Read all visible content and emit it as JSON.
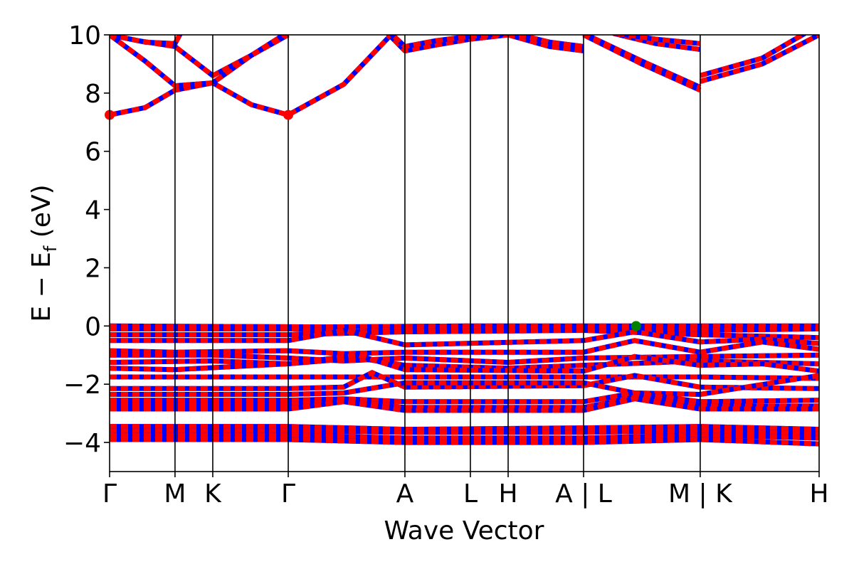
{
  "chart_data": {
    "type": "line",
    "xlabel": "Wave Vector",
    "ylabel": {
      "main": "E − E",
      "sub": "f",
      "unit": " (eV)"
    },
    "ylim": [
      -5,
      10
    ],
    "xlim": [
      0,
      1
    ],
    "grid": false,
    "yticks": [
      -4,
      -2,
      0,
      2,
      4,
      6,
      8,
      10
    ],
    "ytick_labels": [
      "−4",
      "−2",
      "0",
      "2",
      "4",
      "6",
      "8",
      "10"
    ],
    "kpoints": [
      {
        "label": "Γ",
        "x": 0.0
      },
      {
        "label": "M",
        "x": 0.0922
      },
      {
        "label": "K",
        "x": 0.1454
      },
      {
        "label": "Γ",
        "x": 0.2518
      },
      {
        "label": "A",
        "x": 0.4162
      },
      {
        "label": "L",
        "x": 0.5085
      },
      {
        "label": "H",
        "x": 0.5617
      },
      {
        "label": "A | L",
        "x": 0.668
      },
      {
        "label": "M | K",
        "x": 0.8324
      },
      {
        "label": "H",
        "x": 1.0
      }
    ],
    "colors": {
      "spin_up": "#ff0000",
      "spin_down": "#0000ff",
      "vbm": "#008000",
      "cbm": "#ff0000"
    },
    "cbm": {
      "x": 0.0,
      "y": 7.25,
      "x2": 0.2518
    },
    "vbm": {
      "x": 0.742,
      "y": 0.0
    },
    "conduction_bands": [
      {
        "name": "c1",
        "points": [
          [
            0.0,
            7.25
          ],
          [
            0.05,
            7.5
          ],
          [
            0.0922,
            8.1
          ],
          [
            0.1454,
            8.35
          ],
          [
            0.2,
            7.6
          ],
          [
            0.2518,
            7.25
          ],
          [
            0.33,
            8.3
          ],
          [
            0.4162,
            10.5
          ]
        ]
      },
      {
        "name": "c2",
        "points": [
          [
            0.0,
            10.0
          ],
          [
            0.05,
            9.1
          ],
          [
            0.0922,
            8.25
          ],
          [
            0.1454,
            8.35
          ],
          [
            0.2,
            9.3
          ],
          [
            0.2518,
            10.0
          ]
        ]
      },
      {
        "name": "c3",
        "points": [
          [
            0.0,
            10.0
          ],
          [
            0.04,
            9.8
          ],
          [
            0.0922,
            9.6
          ],
          [
            0.1454,
            8.6
          ],
          [
            0.2,
            9.3
          ],
          [
            0.2518,
            10.1
          ]
        ]
      },
      {
        "name": "c4",
        "points": [
          [
            0.0,
            10.0
          ],
          [
            0.05,
            9.75
          ],
          [
            0.0922,
            9.7
          ],
          [
            0.1,
            10.05
          ]
        ]
      },
      {
        "name": "c5",
        "points": [
          [
            0.39,
            10.1
          ],
          [
            0.4162,
            9.45
          ],
          [
            0.46,
            9.65
          ],
          [
            0.5085,
            9.85
          ],
          [
            0.5617,
            10.0
          ]
        ]
      },
      {
        "name": "c6",
        "points": [
          [
            0.39,
            10.2
          ],
          [
            0.4162,
            9.6
          ],
          [
            0.46,
            9.8
          ],
          [
            0.5085,
            9.95
          ],
          [
            0.5617,
            10.05
          ]
        ]
      },
      {
        "name": "c7",
        "points": [
          [
            0.5617,
            10.0
          ],
          [
            0.62,
            9.6
          ],
          [
            0.668,
            9.45
          ]
        ]
      },
      {
        "name": "c8",
        "points": [
          [
            0.5617,
            10.1
          ],
          [
            0.62,
            9.75
          ],
          [
            0.668,
            9.6
          ]
        ]
      },
      {
        "name": "c9",
        "points": [
          [
            0.668,
            10.0
          ],
          [
            0.75,
            9.0
          ],
          [
            0.8324,
            8.1
          ]
        ]
      },
      {
        "name": "c10",
        "points": [
          [
            0.668,
            10.05
          ],
          [
            0.75,
            9.1
          ],
          [
            0.8324,
            8.2
          ]
        ]
      },
      {
        "name": "c11",
        "points": [
          [
            0.71,
            10.05
          ],
          [
            0.77,
            9.7
          ],
          [
            0.8324,
            9.5
          ]
        ]
      },
      {
        "name": "c12",
        "points": [
          [
            0.7,
            10.1
          ],
          [
            0.77,
            9.85
          ],
          [
            0.8324,
            9.7
          ]
        ]
      },
      {
        "name": "c13",
        "points": [
          [
            0.8324,
            8.4
          ],
          [
            0.92,
            9.0
          ],
          [
            1.0,
            10.0
          ]
        ]
      },
      {
        "name": "c14",
        "points": [
          [
            0.8324,
            8.6
          ],
          [
            0.92,
            9.2
          ],
          [
            0.98,
            10.05
          ]
        ]
      }
    ],
    "valence_bands": [
      {
        "name": "v1",
        "points": [
          [
            0.0,
            0.0
          ],
          [
            0.3,
            -0.03
          ],
          [
            0.5,
            0.0
          ],
          [
            0.742,
            0.0
          ],
          [
            1.0,
            0.0
          ]
        ]
      },
      {
        "name": "v2",
        "points": [
          [
            0.0,
            -0.1
          ],
          [
            0.2518,
            -0.1
          ],
          [
            0.35,
            -0.2
          ],
          [
            0.4162,
            -0.1
          ],
          [
            0.742,
            -0.05
          ],
          [
            0.8324,
            -0.15
          ],
          [
            1.0,
            -0.1
          ]
        ]
      },
      {
        "name": "v3",
        "points": [
          [
            0.0,
            -0.3
          ],
          [
            0.2518,
            -0.3
          ],
          [
            0.4162,
            -0.2
          ],
          [
            0.668,
            -0.15
          ],
          [
            0.8324,
            -0.3
          ],
          [
            1.0,
            -0.4
          ]
        ]
      },
      {
        "name": "v4",
        "points": [
          [
            0.0,
            -0.5
          ],
          [
            0.2518,
            -0.5
          ],
          [
            0.33,
            -0.15
          ],
          [
            0.4162,
            -0.65
          ],
          [
            0.668,
            -0.5
          ],
          [
            0.74,
            -0.2
          ],
          [
            0.8324,
            -0.55
          ],
          [
            0.92,
            -0.45
          ],
          [
            1.0,
            -0.6
          ]
        ]
      },
      {
        "name": "v5",
        "points": [
          [
            0.0,
            -0.85
          ],
          [
            0.0922,
            -0.9
          ],
          [
            0.2518,
            -0.85
          ],
          [
            0.33,
            -0.95
          ],
          [
            0.4162,
            -0.9
          ],
          [
            0.668,
            -0.9
          ],
          [
            0.74,
            -0.5
          ],
          [
            0.8324,
            -0.9
          ],
          [
            0.92,
            -0.55
          ],
          [
            1.0,
            -0.8
          ]
        ]
      },
      {
        "name": "v6",
        "points": [
          [
            0.0,
            -1.0
          ],
          [
            0.1454,
            -1.0
          ],
          [
            0.2518,
            -1.1
          ],
          [
            0.33,
            -1.2
          ],
          [
            0.4162,
            -1.1
          ],
          [
            0.5617,
            -1.25
          ],
          [
            0.668,
            -1.1
          ],
          [
            0.8324,
            -1.05
          ],
          [
            1.0,
            -1.0
          ]
        ]
      },
      {
        "name": "v7",
        "points": [
          [
            0.0,
            -1.25
          ],
          [
            0.1454,
            -1.2
          ],
          [
            0.2518,
            -1.3
          ],
          [
            0.35,
            -1.1
          ],
          [
            0.4162,
            -1.35
          ],
          [
            0.5617,
            -1.45
          ],
          [
            0.668,
            -1.35
          ],
          [
            0.8324,
            -1.2
          ],
          [
            1.0,
            -1.3
          ]
        ]
      },
      {
        "name": "v8",
        "points": [
          [
            0.0,
            -1.45
          ],
          [
            0.0922,
            -1.5
          ],
          [
            0.2518,
            -1.3
          ],
          [
            0.35,
            -1.0
          ],
          [
            0.4162,
            -1.5
          ],
          [
            0.668,
            -1.55
          ],
          [
            0.74,
            -1.05
          ],
          [
            0.8324,
            -1.35
          ],
          [
            0.92,
            -1.3
          ],
          [
            1.0,
            -1.55
          ]
        ]
      },
      {
        "name": "v9",
        "points": [
          [
            0.0,
            -1.75
          ],
          [
            0.2518,
            -1.75
          ],
          [
            0.4162,
            -1.75
          ],
          [
            0.668,
            -1.75
          ],
          [
            0.8324,
            -1.75
          ],
          [
            1.0,
            -1.8
          ]
        ]
      },
      {
        "name": "v10",
        "points": [
          [
            0.0,
            -2.15
          ],
          [
            0.2518,
            -2.15
          ],
          [
            0.33,
            -2.1
          ],
          [
            0.37,
            -1.6
          ],
          [
            0.4162,
            -2.1
          ],
          [
            0.668,
            -2.05
          ],
          [
            0.74,
            -1.7
          ],
          [
            0.8324,
            -2.1
          ],
          [
            1.0,
            -2.15
          ]
        ]
      },
      {
        "name": "v11",
        "points": [
          [
            0.0,
            -2.35
          ],
          [
            0.2518,
            -2.35
          ],
          [
            0.33,
            -2.3
          ],
          [
            0.4162,
            -1.95
          ],
          [
            0.668,
            -1.95
          ],
          [
            0.74,
            -2.3
          ],
          [
            0.8324,
            -2.35
          ],
          [
            1.0,
            -1.7
          ]
        ]
      },
      {
        "name": "v12",
        "points": [
          [
            0.0,
            -2.55
          ],
          [
            0.2518,
            -2.55
          ],
          [
            0.33,
            -2.5
          ],
          [
            0.4162,
            -2.6
          ],
          [
            0.668,
            -2.6
          ],
          [
            0.74,
            -2.3
          ],
          [
            0.8324,
            -2.6
          ],
          [
            1.0,
            -2.55
          ]
        ]
      },
      {
        "name": "v13",
        "points": [
          [
            0.0,
            -2.7
          ],
          [
            0.2518,
            -2.7
          ],
          [
            0.33,
            -2.55
          ],
          [
            0.4162,
            -2.8
          ],
          [
            0.668,
            -2.8
          ],
          [
            0.74,
            -2.45
          ],
          [
            0.8324,
            -2.75
          ],
          [
            1.0,
            -2.75
          ]
        ]
      },
      {
        "name": "v14",
        "points": [
          [
            0.0,
            -2.85
          ],
          [
            0.2518,
            -2.85
          ],
          [
            0.33,
            -2.6
          ],
          [
            0.4162,
            -2.9
          ],
          [
            0.668,
            -2.9
          ],
          [
            0.74,
            -2.5
          ],
          [
            0.8324,
            -2.85
          ],
          [
            1.0,
            -2.85
          ]
        ]
      },
      {
        "name": "v15",
        "points": [
          [
            0.0,
            -3.45
          ],
          [
            0.2518,
            -3.45
          ],
          [
            0.4162,
            -3.55
          ],
          [
            0.668,
            -3.5
          ],
          [
            0.8324,
            -3.45
          ],
          [
            1.0,
            -3.55
          ]
        ]
      },
      {
        "name": "v16",
        "points": [
          [
            0.0,
            -3.6
          ],
          [
            0.2518,
            -3.6
          ],
          [
            0.4162,
            -3.65
          ],
          [
            0.668,
            -3.65
          ],
          [
            0.8324,
            -3.6
          ],
          [
            1.0,
            -3.7
          ]
        ]
      },
      {
        "name": "v17",
        "points": [
          [
            0.0,
            -3.75
          ],
          [
            0.2518,
            -3.75
          ],
          [
            0.4162,
            -3.85
          ],
          [
            0.668,
            -3.85
          ],
          [
            0.8324,
            -3.75
          ],
          [
            1.0,
            -3.85
          ]
        ]
      },
      {
        "name": "v18",
        "points": [
          [
            0.0,
            -3.9
          ],
          [
            0.2518,
            -3.9
          ],
          [
            0.4162,
            -4.0
          ],
          [
            0.668,
            -4.0
          ],
          [
            0.8324,
            -3.9
          ],
          [
            1.0,
            -4.05
          ]
        ]
      }
    ]
  }
}
